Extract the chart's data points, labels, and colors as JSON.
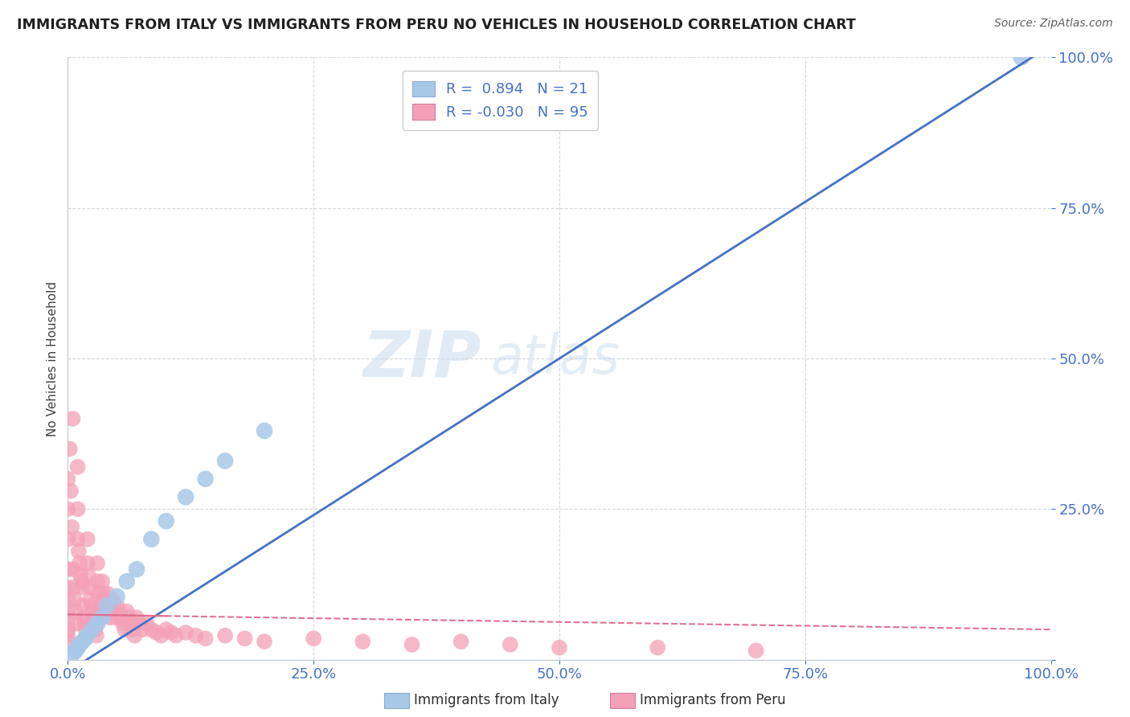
{
  "title": "IMMIGRANTS FROM ITALY VS IMMIGRANTS FROM PERU NO VEHICLES IN HOUSEHOLD CORRELATION CHART",
  "source": "Source: ZipAtlas.com",
  "ylabel": "No Vehicles in Household",
  "xlim": [
    0.0,
    1.0
  ],
  "ylim": [
    0.0,
    1.0
  ],
  "xtick_labels": [
    "0.0%",
    "25.0%",
    "50.0%",
    "75.0%",
    "100.0%"
  ],
  "xtick_vals": [
    0.0,
    0.25,
    0.5,
    0.75,
    1.0
  ],
  "ytick_labels": [
    "",
    "25.0%",
    "50.0%",
    "75.0%",
    "100.0%"
  ],
  "ytick_vals": [
    0.0,
    0.25,
    0.5,
    0.75,
    1.0
  ],
  "italy_R": 0.894,
  "italy_N": 21,
  "peru_R": -0.03,
  "peru_N": 95,
  "italy_color": "#a8c8e8",
  "peru_color": "#f4a0b8",
  "italy_line_color": "#4472c4",
  "peru_line_color": "#e07090",
  "watermark_zip": "ZIP",
  "watermark_atlas": "atlas",
  "legend_italy_label": "Immigrants from Italy",
  "legend_peru_label": "Immigrants from Peru",
  "background_color": "#ffffff",
  "grid_color": "#c8d0d8",
  "title_color": "#202020",
  "source_color": "#606060",
  "axis_label_color": "#4472c4",
  "italy_line_x0": 0.0,
  "italy_line_y0": -0.02,
  "italy_line_x1": 1.0,
  "italy_line_y1": 1.02,
  "peru_line_x0": 0.0,
  "peru_line_y0": 0.075,
  "peru_line_x1": 1.0,
  "peru_line_y1": 0.05,
  "italy_scatter_x": [
    0.005,
    0.008,
    0.01,
    0.012,
    0.015,
    0.018,
    0.02,
    0.025,
    0.03,
    0.035,
    0.04,
    0.05,
    0.06,
    0.07,
    0.085,
    0.1,
    0.12,
    0.14,
    0.16,
    0.2,
    0.97
  ],
  "italy_scatter_y": [
    0.01,
    0.015,
    0.02,
    0.025,
    0.03,
    0.035,
    0.04,
    0.05,
    0.06,
    0.07,
    0.09,
    0.105,
    0.13,
    0.15,
    0.2,
    0.23,
    0.27,
    0.3,
    0.33,
    0.38,
    1.0
  ],
  "peru_scatter_x": [
    0.0,
    0.0,
    0.0,
    0.0,
    0.0,
    0.0,
    0.0,
    0.0,
    0.0,
    0.0,
    0.0,
    0.002,
    0.003,
    0.004,
    0.005,
    0.005,
    0.006,
    0.007,
    0.008,
    0.009,
    0.01,
    0.01,
    0.01,
    0.011,
    0.012,
    0.013,
    0.014,
    0.015,
    0.015,
    0.016,
    0.017,
    0.018,
    0.02,
    0.02,
    0.021,
    0.022,
    0.023,
    0.024,
    0.025,
    0.025,
    0.026,
    0.027,
    0.028,
    0.029,
    0.03,
    0.03,
    0.031,
    0.032,
    0.033,
    0.034,
    0.035,
    0.036,
    0.037,
    0.038,
    0.04,
    0.041,
    0.042,
    0.043,
    0.045,
    0.046,
    0.048,
    0.05,
    0.052,
    0.054,
    0.056,
    0.058,
    0.06,
    0.062,
    0.064,
    0.066,
    0.068,
    0.07,
    0.073,
    0.076,
    0.08,
    0.085,
    0.09,
    0.095,
    0.1,
    0.105,
    0.11,
    0.12,
    0.13,
    0.14,
    0.16,
    0.18,
    0.2,
    0.25,
    0.3,
    0.35,
    0.4,
    0.45,
    0.5,
    0.6,
    0.7
  ],
  "peru_scatter_y": [
    0.3,
    0.25,
    0.2,
    0.15,
    0.12,
    0.1,
    0.08,
    0.06,
    0.05,
    0.04,
    0.03,
    0.35,
    0.28,
    0.22,
    0.4,
    0.15,
    0.12,
    0.1,
    0.08,
    0.06,
    0.32,
    0.25,
    0.2,
    0.18,
    0.16,
    0.14,
    0.13,
    0.12,
    0.09,
    0.07,
    0.06,
    0.05,
    0.2,
    0.16,
    0.14,
    0.12,
    0.1,
    0.09,
    0.08,
    0.06,
    0.07,
    0.06,
    0.05,
    0.04,
    0.16,
    0.13,
    0.11,
    0.09,
    0.08,
    0.07,
    0.13,
    0.11,
    0.1,
    0.08,
    0.11,
    0.09,
    0.08,
    0.07,
    0.1,
    0.08,
    0.07,
    0.09,
    0.08,
    0.07,
    0.06,
    0.05,
    0.08,
    0.07,
    0.06,
    0.05,
    0.04,
    0.07,
    0.06,
    0.05,
    0.06,
    0.05,
    0.045,
    0.04,
    0.05,
    0.045,
    0.04,
    0.045,
    0.04,
    0.035,
    0.04,
    0.035,
    0.03,
    0.035,
    0.03,
    0.025,
    0.03,
    0.025,
    0.02,
    0.02,
    0.015
  ]
}
